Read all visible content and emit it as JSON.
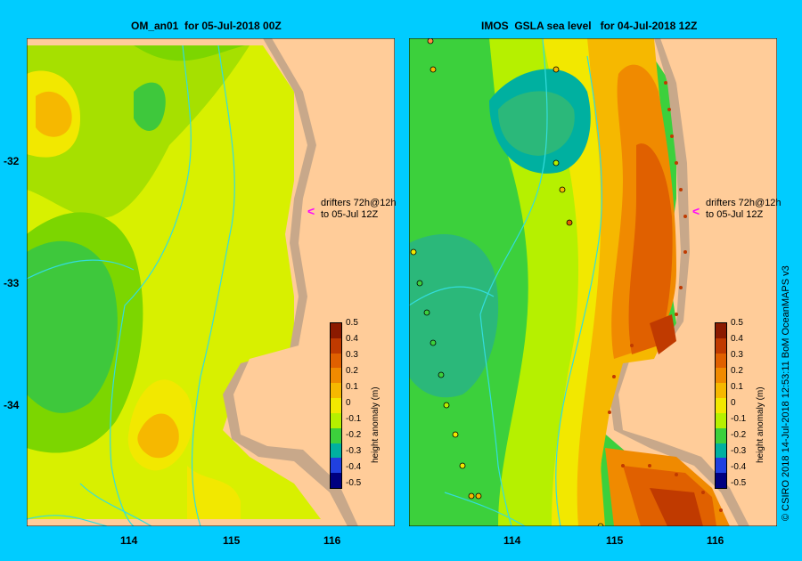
{
  "panels": [
    {
      "title": "OM_an01  for 05-Jul-2018 00Z"
    },
    {
      "title": "IMOS  GSLA sea level   for 04-Jul-2018 12Z"
    }
  ],
  "axes": {
    "lon_ticks": [
      "114",
      "115",
      "116"
    ],
    "lat_ticks": [
      "-32",
      "-33",
      "-34"
    ]
  },
  "colorbar": {
    "label": "height anomaly  (m)",
    "ticks": [
      "0.5",
      "0.4",
      "0.3",
      "0.2",
      "0.1",
      "0",
      "-0.1",
      "-0.2",
      "-0.3",
      "-0.4",
      "-0.5"
    ],
    "colors": [
      "#8b1a00",
      "#c03a00",
      "#e06000",
      "#f08a00",
      "#f6b800",
      "#f2e800",
      "#b6f000",
      "#3cd03c",
      "#00b0a0",
      "#2040e0",
      "#000080"
    ]
  },
  "annotation": {
    "drifters_line1": "drifters 72h@12h",
    "drifters_line2": "to 05-Jul 12Z"
  },
  "credit": "© CSIRO 2018   14-Jul-2018 12:53:11 BoM OceanMAPS v3",
  "colors": {
    "frame": "#00ccff",
    "land": "#ffcc99",
    "shelf": "#c8a88a",
    "river": "#33dddd",
    "drifter_marker": "#ff00ff"
  }
}
